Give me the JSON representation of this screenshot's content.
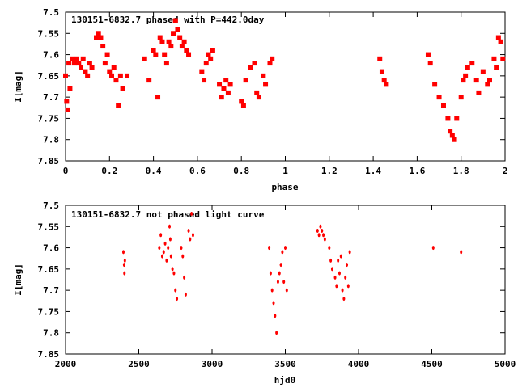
{
  "chart_data": [
    {
      "type": "scatter",
      "title": "130151-6832.7 phased with P=442.0day",
      "xlabel": "phase",
      "ylabel": "I[mag]",
      "xlim": [
        0,
        2
      ],
      "ylim": [
        7.5,
        7.85
      ],
      "y_inverted": true,
      "grid": false,
      "marker_color": "#ff0000",
      "x_ticks": [
        "0",
        "0.2",
        "0.4",
        "0.6",
        "0.8",
        "1",
        "1.2",
        "1.4",
        "1.6",
        "1.8",
        "2"
      ],
      "y_ticks": [
        "7.5",
        "7.55",
        "7.6",
        "7.65",
        "7.7",
        "7.75",
        "7.8",
        "7.85"
      ],
      "x": [
        0.0,
        0.005,
        0.01,
        0.015,
        0.02,
        0.03,
        0.04,
        0.05,
        0.06,
        0.07,
        0.08,
        0.09,
        0.1,
        0.11,
        0.12,
        0.14,
        0.15,
        0.16,
        0.17,
        0.18,
        0.19,
        0.2,
        0.21,
        0.22,
        0.23,
        0.24,
        0.25,
        0.26,
        0.28,
        0.36,
        0.38,
        0.4,
        0.41,
        0.42,
        0.43,
        0.44,
        0.45,
        0.46,
        0.47,
        0.48,
        0.49,
        0.5,
        0.51,
        0.52,
        0.53,
        0.54,
        0.55,
        0.56,
        0.62,
        0.63,
        0.64,
        0.65,
        0.66,
        0.67,
        0.7,
        0.71,
        0.72,
        0.73,
        0.74,
        0.75,
        0.8,
        0.81,
        0.82,
        0.84,
        0.86,
        0.87,
        0.88,
        0.9,
        0.91,
        0.93,
        0.94,
        1.43,
        1.44,
        1.45,
        1.46,
        1.65,
        1.66,
        1.68,
        1.7,
        1.72,
        1.74,
        1.75,
        1.76,
        1.77,
        1.78,
        1.8,
        1.81,
        1.82,
        1.83,
        1.85,
        1.87,
        1.88,
        1.9,
        1.92,
        1.93,
        1.95,
        1.96,
        1.97,
        1.98,
        1.99
      ],
      "y": [
        7.65,
        7.71,
        7.73,
        7.62,
        7.68,
        7.61,
        7.62,
        7.61,
        7.62,
        7.63,
        7.61,
        7.64,
        7.65,
        7.62,
        7.63,
        7.56,
        7.55,
        7.56,
        7.58,
        7.62,
        7.6,
        7.64,
        7.65,
        7.63,
        7.66,
        7.72,
        7.65,
        7.68,
        7.65,
        7.61,
        7.66,
        7.59,
        7.6,
        7.7,
        7.56,
        7.57,
        7.6,
        7.62,
        7.57,
        7.58,
        7.55,
        7.52,
        7.54,
        7.56,
        7.58,
        7.57,
        7.59,
        7.6,
        7.64,
        7.66,
        7.62,
        7.6,
        7.61,
        7.59,
        7.67,
        7.7,
        7.68,
        7.66,
        7.69,
        7.67,
        7.71,
        7.72,
        7.66,
        7.63,
        7.62,
        7.69,
        7.7,
        7.65,
        7.67,
        7.62,
        7.61,
        7.61,
        7.64,
        7.66,
        7.67,
        7.6,
        7.62,
        7.67,
        7.7,
        7.72,
        7.75,
        7.78,
        7.79,
        7.8,
        7.75,
        7.7,
        7.66,
        7.65,
        7.63,
        7.62,
        7.66,
        7.69,
        7.64,
        7.67,
        7.66,
        7.61,
        7.63,
        7.56,
        7.57,
        7.61
      ]
    },
    {
      "type": "scatter",
      "title": "130151-6832.7 not phased light curve",
      "xlabel": "hjd0",
      "ylabel": "I[mag]",
      "xlim": [
        2000,
        5000
      ],
      "ylim": [
        7.5,
        7.85
      ],
      "y_inverted": true,
      "grid": false,
      "marker_color": "#ff0000",
      "x_ticks": [
        "2000",
        "2500",
        "3000",
        "3500",
        "4000",
        "4500",
        "5000"
      ],
      "y_ticks": [
        "7.5",
        "7.55",
        "7.6",
        "7.65",
        "7.7",
        "7.75",
        "7.8",
        "7.85"
      ],
      "x": [
        2395,
        2400,
        2402,
        2405,
        2640,
        2650,
        2660,
        2670,
        2680,
        2690,
        2700,
        2710,
        2715,
        2720,
        2730,
        2740,
        2750,
        2760,
        2790,
        2800,
        2810,
        2820,
        2840,
        2850,
        2860,
        2870,
        3390,
        3400,
        3410,
        3420,
        3430,
        3440,
        3450,
        3460,
        3470,
        3480,
        3490,
        3500,
        3510,
        3720,
        3730,
        3740,
        3750,
        3760,
        3770,
        3800,
        3810,
        3820,
        3840,
        3850,
        3860,
        3870,
        3880,
        3890,
        3900,
        3910,
        3920,
        3930,
        3940,
        4510,
        4700
      ],
      "y": [
        7.61,
        7.64,
        7.66,
        7.63,
        7.6,
        7.57,
        7.62,
        7.61,
        7.59,
        7.63,
        7.6,
        7.55,
        7.58,
        7.62,
        7.65,
        7.66,
        7.7,
        7.72,
        7.6,
        7.62,
        7.67,
        7.71,
        7.56,
        7.58,
        7.52,
        7.57,
        7.6,
        7.66,
        7.7,
        7.73,
        7.76,
        7.8,
        7.68,
        7.66,
        7.64,
        7.61,
        7.68,
        7.6,
        7.7,
        7.56,
        7.57,
        7.55,
        7.56,
        7.57,
        7.58,
        7.6,
        7.63,
        7.65,
        7.67,
        7.69,
        7.63,
        7.66,
        7.62,
        7.7,
        7.72,
        7.67,
        7.64,
        7.69,
        7.61,
        7.6,
        7.61
      ]
    }
  ]
}
